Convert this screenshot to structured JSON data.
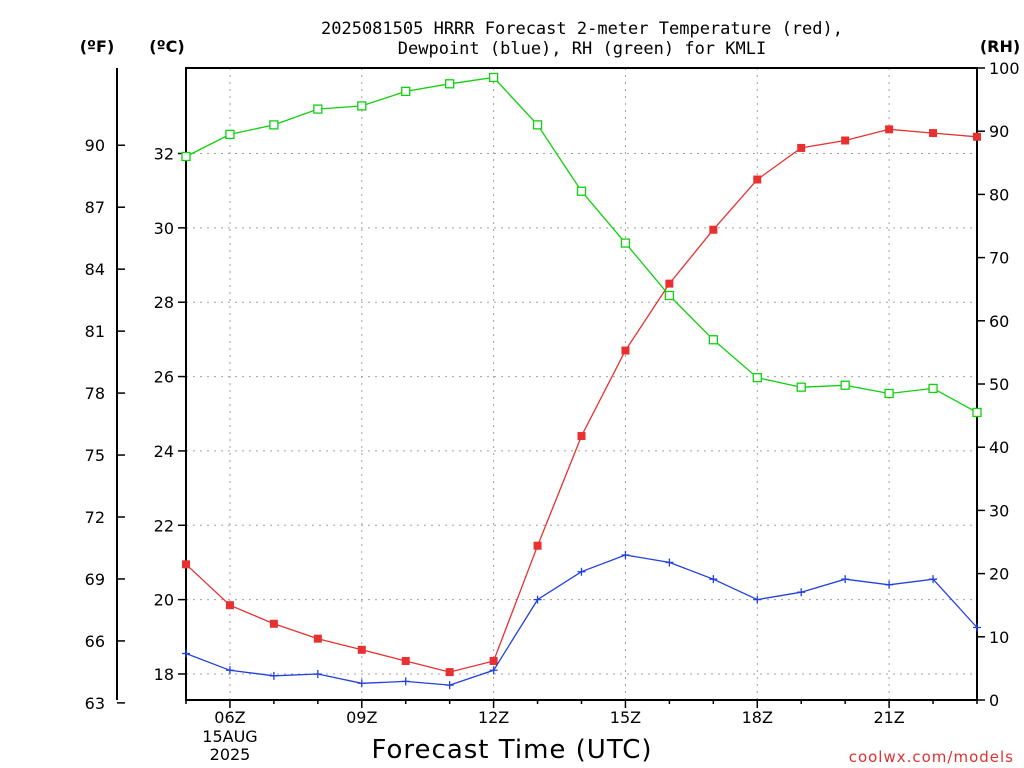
{
  "chart_data": {
    "type": "line",
    "title_lines": [
      "2025081505 HRRR Forecast 2-meter Temperature (red),",
      "Dewpoint (blue), RH (green) for KMLI"
    ],
    "xlabel": "Forecast Time (UTC)",
    "credit": "coolwx.com/models",
    "units": {
      "fahrenheit": "(ºF)",
      "celsius": "(ºC)",
      "rh": "(RH)"
    },
    "x": [
      "05Z",
      "06Z",
      "07Z",
      "08Z",
      "09Z",
      "10Z",
      "11Z",
      "12Z",
      "13Z",
      "14Z",
      "15Z",
      "16Z",
      "17Z",
      "18Z",
      "19Z",
      "20Z",
      "21Z",
      "22Z",
      "23Z"
    ],
    "x_ticks": [
      "06Z",
      "09Z",
      "12Z",
      "15Z",
      "18Z",
      "21Z"
    ],
    "date_label": {
      "day": "15AUG",
      "year": "2025"
    },
    "ylim_celsius": [
      17.3,
      34.3
    ],
    "ylim_rh": [
      0,
      100
    ],
    "celsius_ticks": [
      18,
      20,
      22,
      24,
      26,
      28,
      30,
      32
    ],
    "fahrenheit_ticks": [
      63,
      66,
      69,
      72,
      75,
      78,
      81,
      84,
      87,
      90
    ],
    "rh_ticks": [
      0,
      10,
      20,
      30,
      40,
      50,
      60,
      70,
      80,
      90,
      100
    ],
    "series": [
      {
        "color": "#e83030",
        "marker": "filled-square",
        "axis": "celsius",
        "values": [
          20.95,
          19.85,
          19.35,
          18.95,
          18.65,
          18.35,
          18.05,
          18.35,
          21.45,
          24.4,
          26.7,
          28.5,
          29.95,
          31.3,
          32.15,
          32.35,
          32.65,
          32.55,
          32.45
        ]
      },
      {
        "color": "#2040e0",
        "marker": "plus",
        "axis": "celsius",
        "values": [
          18.55,
          18.1,
          17.95,
          18.0,
          17.75,
          17.8,
          17.7,
          18.1,
          20.0,
          20.75,
          21.2,
          21.0,
          20.55,
          20.0,
          20.2,
          20.55,
          20.4,
          20.55,
          19.25
        ]
      },
      {
        "color": "#10d010",
        "marker": "open-square",
        "axis": "rh",
        "values": [
          86,
          89.5,
          91,
          93.5,
          94,
          96.3,
          97.5,
          98.5,
          91,
          80.5,
          72.3,
          64,
          57,
          51,
          49.5,
          49.8,
          48.5,
          49.3,
          45.5
        ]
      }
    ]
  }
}
